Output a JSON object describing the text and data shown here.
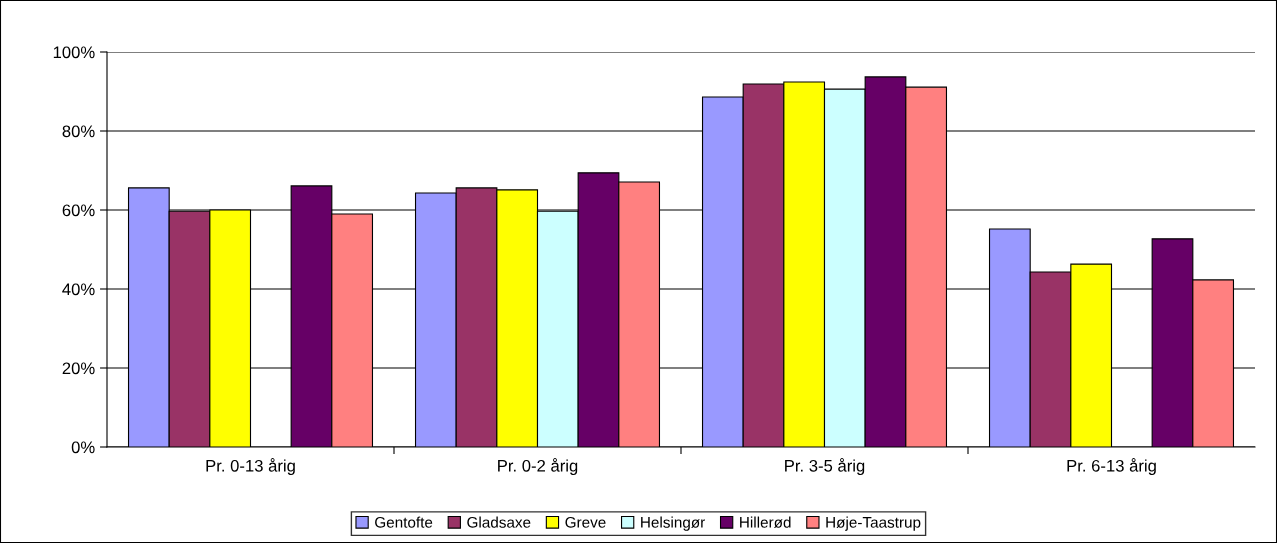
{
  "chart_data": {
    "type": "bar",
    "categories": [
      "Pr. 0-13 årig",
      "Pr. 0-2 årig",
      "Pr. 3-5 årig",
      "Pr. 6-13 årig"
    ],
    "series": [
      {
        "name": "Gentofte",
        "color": "#9999ff",
        "values": [
          65.6,
          64.3,
          88.6,
          55.2
        ]
      },
      {
        "name": "Gladsaxe",
        "color": "#993366",
        "values": [
          59.7,
          65.6,
          91.9,
          44.3
        ]
      },
      {
        "name": "Greve",
        "color": "#ffff00",
        "values": [
          60.0,
          65.1,
          92.4,
          46.3
        ]
      },
      {
        "name": "Helsingør",
        "color": "#ccffff",
        "values": [
          null,
          59.7,
          90.6,
          null
        ]
      },
      {
        "name": "Hillerød",
        "color": "#660066",
        "values": [
          66.1,
          69.4,
          93.7,
          52.7
        ]
      },
      {
        "name": "Høje-Taastrup",
        "color": "#ff8080",
        "values": [
          59.0,
          67.1,
          91.1,
          42.3
        ]
      }
    ],
    "ylim": [
      0,
      100
    ],
    "yticks": [
      {
        "value": 0,
        "label": "0%"
      },
      {
        "value": 20,
        "label": "20%"
      },
      {
        "value": 40,
        "label": "40%"
      },
      {
        "value": 60,
        "label": "60%"
      },
      {
        "value": 80,
        "label": "80%"
      },
      {
        "value": 100,
        "label": "100%"
      }
    ],
    "grid": "y",
    "legend": "bottom"
  }
}
